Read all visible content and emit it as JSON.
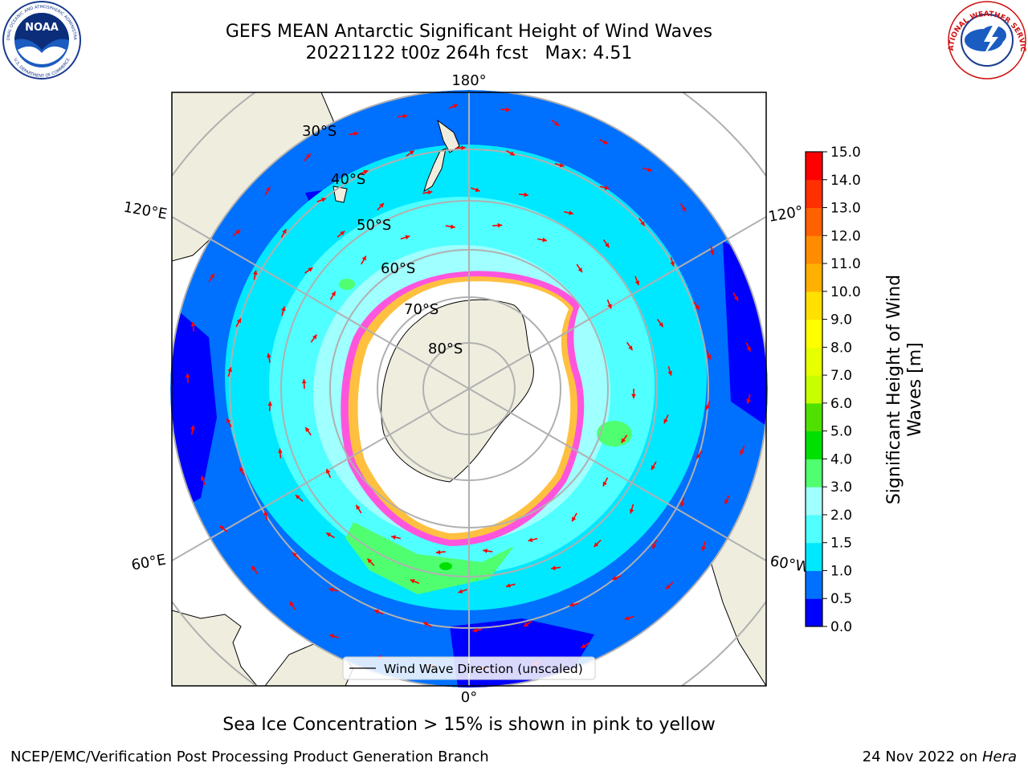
{
  "header": {
    "title_line1": "GEFS MEAN Antarctic Significant Height of Wind Waves",
    "title_line2": "20221122 t00z 264h fcst   Max: 4.51"
  },
  "logos": {
    "left": {
      "text": "NOAA",
      "ring_top": "NATIONAL OCEANIC AND ATMOSPHERIC ADMINISTRATION",
      "ring_bottom": "U.S. DEPARTMENT OF COMMERCE"
    },
    "right": {
      "ring_text": "NATIONAL WEATHER SERVICE"
    }
  },
  "map": {
    "longitude_labels": {
      "top": "180°",
      "bottom": "0°",
      "upper_left": "120°E",
      "lower_left": "60°E",
      "upper_right": "120°",
      "lower_right": "60°W"
    },
    "latitude_labels": [
      "30°S",
      "40°S",
      "50°S",
      "60°S",
      "70°S",
      "80°S"
    ],
    "legend_label": "Wind Wave Direction (unscaled)",
    "colors": {
      "land": "#efedde",
      "ice": "#ffffff",
      "wave_arrow": "#ff0000",
      "grid": "#b0b0b0"
    }
  },
  "colorbar": {
    "label_line1": "Significant Height of Wind",
    "label_line2": "Waves [m]",
    "ticks": [
      "0.0",
      "0.5",
      "1.0",
      "1.5",
      "2.0",
      "3.0",
      "4.0",
      "5.0",
      "6.0",
      "7.0",
      "8.0",
      "9.0",
      "10.0",
      "11.0",
      "12.0",
      "13.0",
      "14.0",
      "15.0"
    ],
    "colors": [
      "#0000ff",
      "#0070ff",
      "#00e8ff",
      "#50ffff",
      "#a0ffff",
      "#50ff70",
      "#00e000",
      "#50e000",
      "#c8ff00",
      "#e8ff00",
      "#ffff00",
      "#ffe000",
      "#ffb000",
      "#ff8c00",
      "#ff6000",
      "#ff3000",
      "#ff0000"
    ]
  },
  "caption": "Sea Ice Concentration > 15% is shown in pink to yellow",
  "footer": {
    "left": "NCEP/EMC/Verification Post Processing Product Generation Branch",
    "right_prefix": "24 Nov 2022 on ",
    "right_host": "Hera"
  }
}
